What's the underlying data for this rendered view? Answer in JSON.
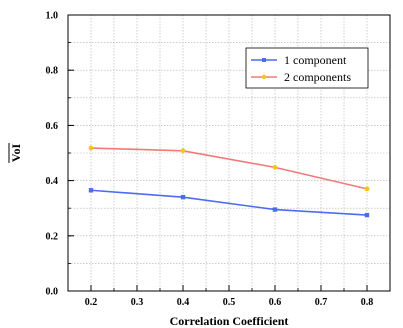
{
  "chart_data": {
    "type": "line",
    "xlabel": "Correlation Coefficient",
    "ylabel": "VoI",
    "xlim": [
      0.15,
      0.85
    ],
    "ylim": [
      0.0,
      1.0
    ],
    "x_ticks": [
      "0.2",
      "0.3",
      "0.4",
      "0.5",
      "0.6",
      "0.7",
      "0.8"
    ],
    "x_tick_values": [
      0.2,
      0.3,
      0.4,
      0.5,
      0.6,
      0.7,
      0.8
    ],
    "y_ticks": [
      "0.0",
      "0.2",
      "0.4",
      "0.6",
      "0.8",
      "1.0"
    ],
    "y_tick_values": [
      0.0,
      0.2,
      0.4,
      0.6,
      0.8,
      1.0
    ],
    "grid": true,
    "legend_position": "top-right",
    "x": [
      0.2,
      0.4,
      0.6,
      0.8
    ],
    "series": [
      {
        "name": "1 component",
        "color": "#4b6cf0",
        "marker": "square",
        "values": [
          0.365,
          0.34,
          0.295,
          0.275
        ]
      },
      {
        "name": "2 components",
        "color": "#f07a7a",
        "marker_color": "#f5c518",
        "marker": "circle",
        "values": [
          0.518,
          0.508,
          0.448,
          0.37
        ]
      }
    ]
  }
}
